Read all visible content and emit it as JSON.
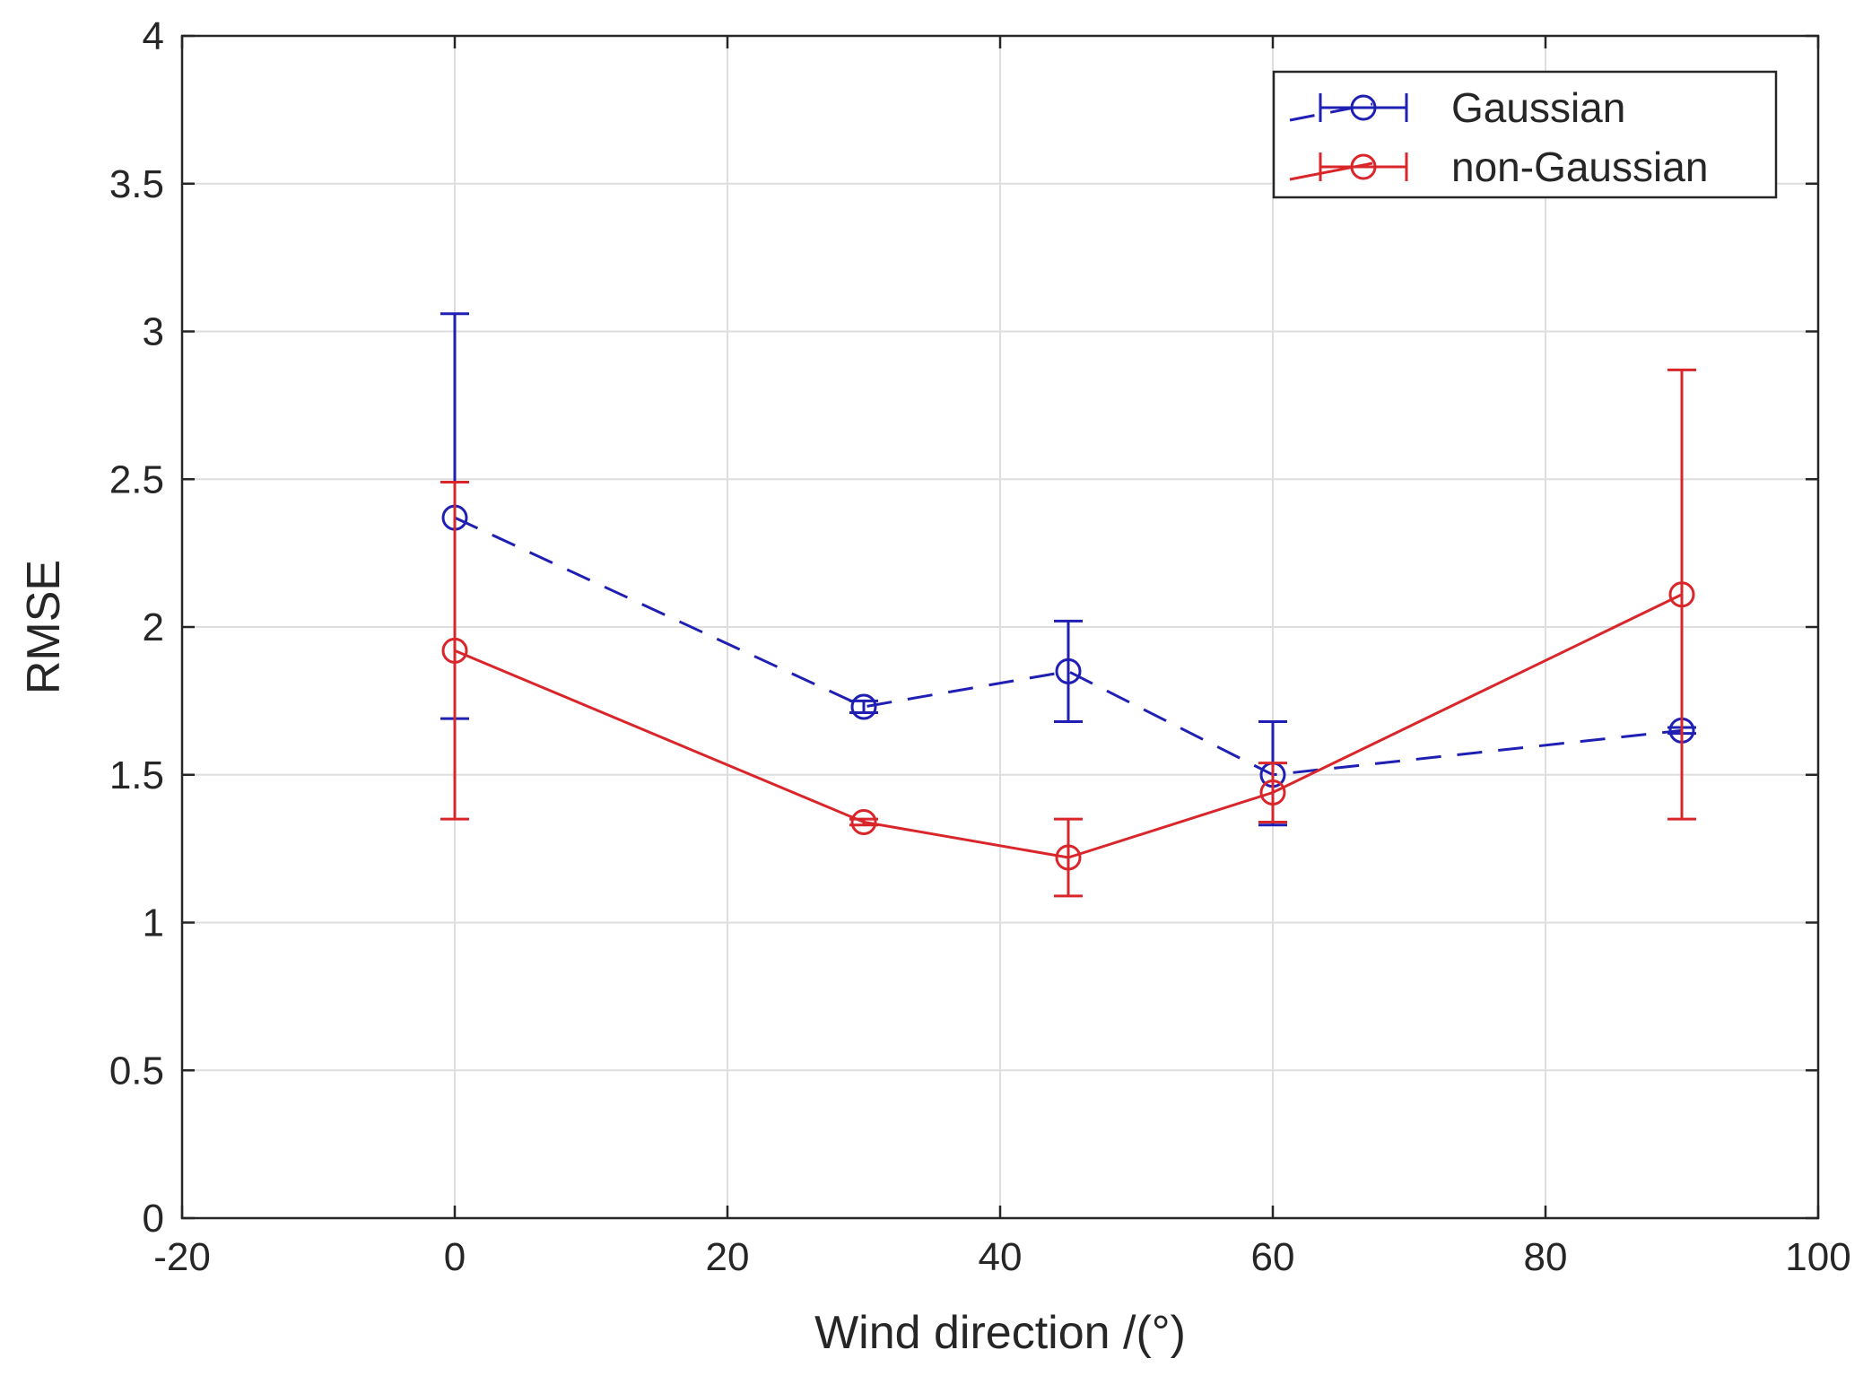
{
  "chart_data": {
    "type": "line",
    "xlabel": "Wind direction /(°)",
    "ylabel": "RMSE",
    "xlim": [
      -20,
      100
    ],
    "ylim": [
      0,
      4
    ],
    "xticks": [
      "-20",
      "0",
      "20",
      "40",
      "60",
      "80",
      "100"
    ],
    "yticks": [
      "0",
      "0.5",
      "1",
      "1.5",
      "2",
      "2.5",
      "3",
      "3.5",
      "4"
    ],
    "grid": true,
    "legend_position": "top-right",
    "x": [
      0,
      30,
      45,
      60,
      90
    ],
    "series": [
      {
        "name": "Gaussian",
        "color": "#1f1fb4",
        "line_style": "dashed",
        "marker": "circle",
        "values": [
          2.37,
          1.73,
          1.85,
          1.5,
          1.65
        ],
        "error_upper": [
          3.06,
          1.75,
          2.02,
          1.68,
          1.66
        ],
        "error_lower": [
          1.69,
          1.71,
          1.68,
          1.33,
          1.64
        ]
      },
      {
        "name": "non-Gaussian",
        "color": "#d9262b",
        "line_style": "solid",
        "marker": "circle",
        "values": [
          1.92,
          1.34,
          1.22,
          1.44,
          2.11
        ],
        "error_upper": [
          2.49,
          1.35,
          1.35,
          1.54,
          2.87
        ],
        "error_lower": [
          1.35,
          1.33,
          1.09,
          1.34,
          1.35
        ]
      }
    ]
  }
}
